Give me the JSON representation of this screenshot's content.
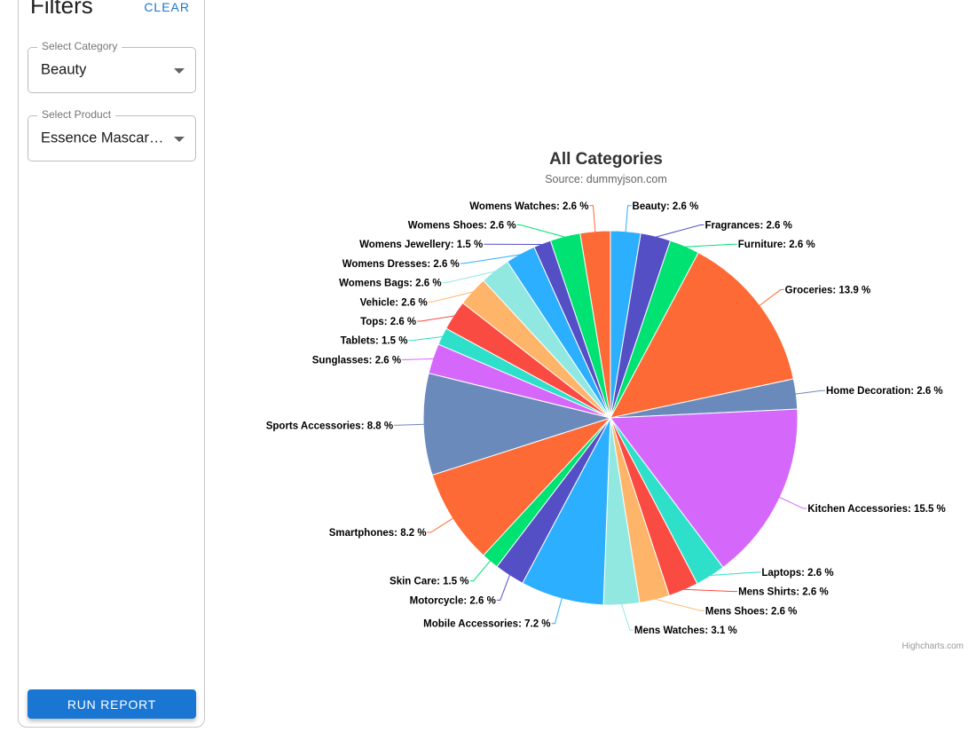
{
  "sidebar": {
    "title": "Filters",
    "clear_label": "CLEAR",
    "category_select": {
      "label": "Select Category",
      "value": "Beauty"
    },
    "product_select": {
      "label": "Select Product",
      "value": "Essence Mascara …"
    },
    "run_report_label": "RUN REPORT"
  },
  "chart_data": {
    "type": "pie",
    "title": "All Categories",
    "subtitle": "Source: dummyjson.com",
    "credits": "Highcharts.com",
    "unit": "%",
    "label_format": "{name}: {value} %",
    "legend": "off",
    "start_angle_deg": 0,
    "direction": "clockwise",
    "palette": [
      "#2caffe",
      "#544fc5",
      "#00e272",
      "#fe6a35",
      "#6b8abc",
      "#d568fb",
      "#2ee0ca",
      "#fa4b42",
      "#feb56a",
      "#91e8e1"
    ],
    "slices": [
      {
        "name": "Beauty",
        "value": 2.6
      },
      {
        "name": "Fragrances",
        "value": 2.6
      },
      {
        "name": "Furniture",
        "value": 2.6
      },
      {
        "name": "Groceries",
        "value": 13.9
      },
      {
        "name": "Home Decoration",
        "value": 2.6
      },
      {
        "name": "Kitchen Accessories",
        "value": 15.5
      },
      {
        "name": "Laptops",
        "value": 2.6
      },
      {
        "name": "Mens Shirts",
        "value": 2.6
      },
      {
        "name": "Mens Shoes",
        "value": 2.6
      },
      {
        "name": "Mens Watches",
        "value": 3.1
      },
      {
        "name": "Mobile Accessories",
        "value": 7.2
      },
      {
        "name": "Motorcycle",
        "value": 2.6
      },
      {
        "name": "Skin Care",
        "value": 1.5
      },
      {
        "name": "Smartphones",
        "value": 8.2
      },
      {
        "name": "Sports Accessories",
        "value": 8.8
      },
      {
        "name": "Sunglasses",
        "value": 2.6
      },
      {
        "name": "Tablets",
        "value": 1.5
      },
      {
        "name": "Tops",
        "value": 2.6
      },
      {
        "name": "Vehicle",
        "value": 2.6
      },
      {
        "name": "Womens Bags",
        "value": 2.6
      },
      {
        "name": "Womens Dresses",
        "value": 2.6
      },
      {
        "name": "Womens Jewellery",
        "value": 1.5
      },
      {
        "name": "Womens Shoes",
        "value": 2.6
      },
      {
        "name": "Womens Watches",
        "value": 2.6
      }
    ]
  }
}
